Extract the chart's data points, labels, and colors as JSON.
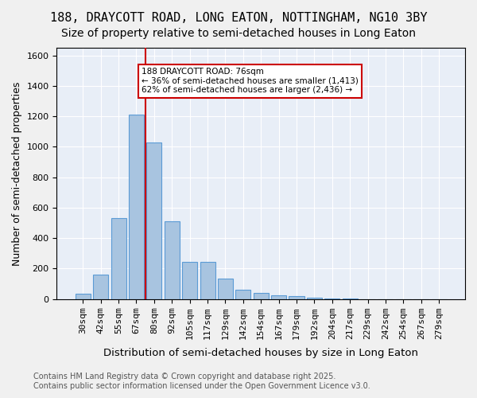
{
  "title_line1": "188, DRAYCOTT ROAD, LONG EATON, NOTTINGHAM, NG10 3BY",
  "title_line2": "Size of property relative to semi-detached houses in Long Eaton",
  "xlabel": "Distribution of semi-detached houses by size in Long Eaton",
  "ylabel": "Number of semi-detached properties",
  "categories": [
    "30sqm",
    "42sqm",
    "55sqm",
    "67sqm",
    "80sqm",
    "92sqm",
    "105sqm",
    "117sqm",
    "129sqm",
    "142sqm",
    "154sqm",
    "167sqm",
    "179sqm",
    "192sqm",
    "204sqm",
    "217sqm",
    "229sqm",
    "242sqm",
    "254sqm",
    "267sqm",
    "279sqm"
  ],
  "values": [
    35,
    160,
    530,
    1210,
    1030,
    510,
    245,
    245,
    135,
    60,
    40,
    25,
    20,
    10,
    5,
    5,
    0,
    0,
    0,
    0,
    0
  ],
  "bar_color": "#a8c4e0",
  "bar_edge_color": "#5b9bd5",
  "property_value": 76,
  "property_label": "188 DRAYCOTT ROAD: 76sqm",
  "smaller_pct": "36%",
  "smaller_count": "1,413",
  "larger_pct": "62%",
  "larger_count": "2,436",
  "vline_x": 4,
  "annotation_box_color": "#ffffff",
  "annotation_box_edge": "#cc0000",
  "vline_color": "#cc0000",
  "bg_color": "#e8eef7",
  "grid_color": "#ffffff",
  "footer_line1": "Contains HM Land Registry data © Crown copyright and database right 2025.",
  "footer_line2": "Contains public sector information licensed under the Open Government Licence v3.0.",
  "ylim": [
    0,
    1650
  ],
  "title_fontsize": 11,
  "subtitle_fontsize": 10,
  "axis_label_fontsize": 9,
  "tick_fontsize": 8,
  "footer_fontsize": 7
}
